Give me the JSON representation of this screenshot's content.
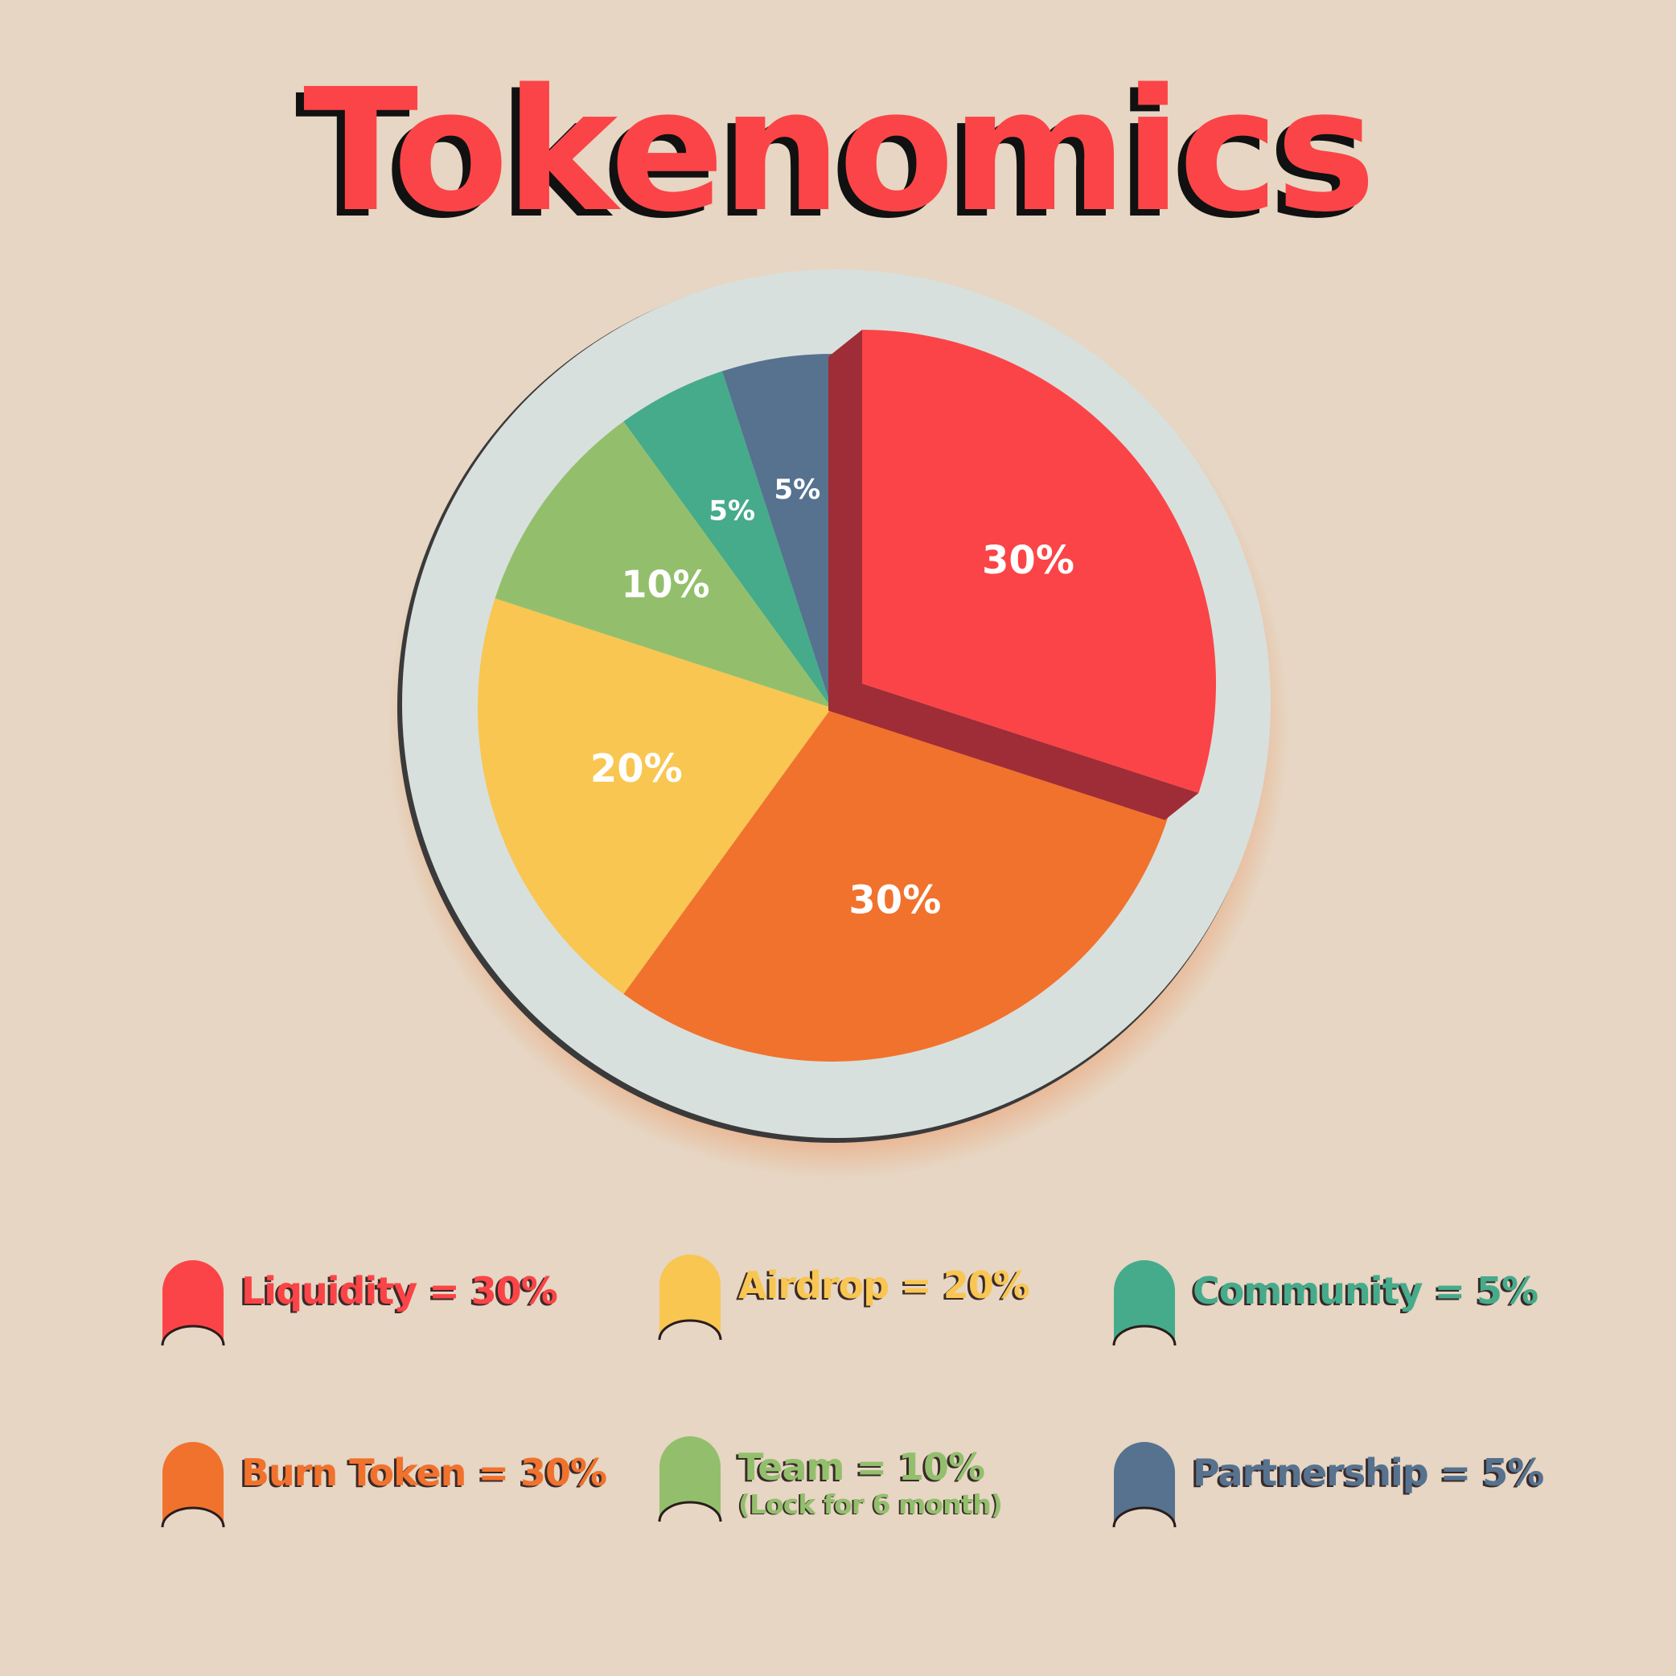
{
  "title": "Tokenomics",
  "colors": {
    "background": "#e6d6c3",
    "title": "#fb4447",
    "ring": "#d8e0dd",
    "liquidity": "#fb4447",
    "liquidity_side": "#9e2d37",
    "burn_token": "#f1722d",
    "airdrop": "#f8c651",
    "team": "#93bf6d",
    "community": "#45ab8b",
    "partnership": "#56728f"
  },
  "chart_data": {
    "type": "pie",
    "title": "Tokenomics",
    "start_position": "12 o'clock, clockwise",
    "exploded_slice": "Liquidity",
    "slices": [
      {
        "name": "Liquidity",
        "value": 30,
        "label": "30%",
        "color": "#fb4447"
      },
      {
        "name": "Burn Token",
        "value": 30,
        "label": "30%",
        "color": "#f1722d"
      },
      {
        "name": "Airdrop",
        "value": 20,
        "label": "20%",
        "color": "#f8c651"
      },
      {
        "name": "Team",
        "value": 10,
        "label": "10%",
        "color": "#93bf6d"
      },
      {
        "name": "Community",
        "value": 5,
        "label": "5%",
        "color": "#45ab8b"
      },
      {
        "name": "Partnership",
        "value": 5,
        "label": "5%",
        "color": "#56728f"
      }
    ],
    "legend_placement": "bottom, 3 columns x 2 rows"
  },
  "legend": [
    {
      "label": "Liquidity = 30%",
      "color": "#fb4447"
    },
    {
      "label": "Airdrop = 20%",
      "color": "#f8c651"
    },
    {
      "label": "Community = 5%",
      "color": "#45ab8b"
    },
    {
      "label": "Burn Token = 30%",
      "color": "#f1722d"
    },
    {
      "label": "Team = 10%",
      "sublabel": "(Lock for 6 month)",
      "color": "#93bf6d"
    },
    {
      "label": "Partnership = 5%",
      "color": "#56728f"
    }
  ]
}
